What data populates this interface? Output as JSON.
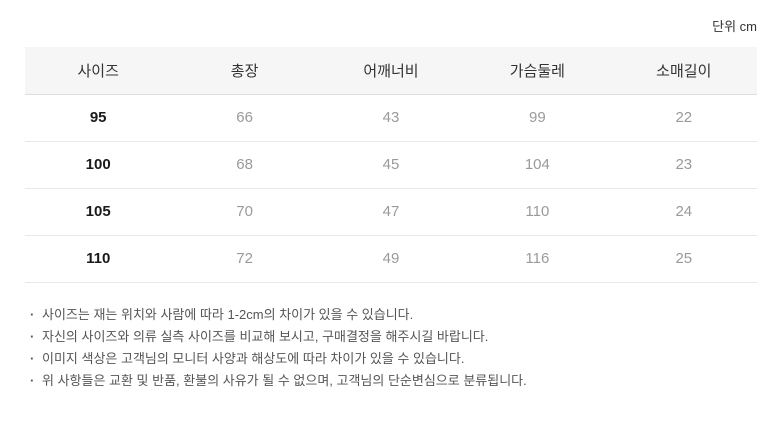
{
  "page": {
    "unit_label": "단위 cm"
  },
  "size_table": {
    "columns": [
      "사이즈",
      "총장",
      "어깨너비",
      "가슴둘레",
      "소매길이"
    ],
    "rows": [
      {
        "size": "95",
        "values": [
          "66",
          "43",
          "99",
          "22"
        ]
      },
      {
        "size": "100",
        "values": [
          "68",
          "45",
          "104",
          "23"
        ]
      },
      {
        "size": "105",
        "values": [
          "70",
          "47",
          "110",
          "24"
        ]
      },
      {
        "size": "110",
        "values": [
          "72",
          "49",
          "116",
          "25"
        ]
      }
    ]
  },
  "notes": {
    "bullet": "·",
    "items": [
      "사이즈는 재는 위치와 사람에 따라 1-2cm의 차이가 있을 수 있습니다.",
      "자신의 사이즈와 의류 실측 사이즈를 비교해 보시고, 구매결정을 해주시길 바랍니다.",
      "이미지 색상은 고객님의 모니터 사양과 해상도에 따라 차이가 있을 수 있습니다.",
      "위 사항들은 교환 및 반품, 환불의 사유가 될 수 없으며, 고객님의 단순변심으로 분류됩니다."
    ]
  },
  "colors": {
    "header_background": "#f6f6f6",
    "header_text": "#333333",
    "size_text": "#1a1a1a",
    "value_text": "#9a9a9a",
    "header_border": "#dedede",
    "row_border": "#e8e8e8",
    "note_text": "#555555"
  }
}
